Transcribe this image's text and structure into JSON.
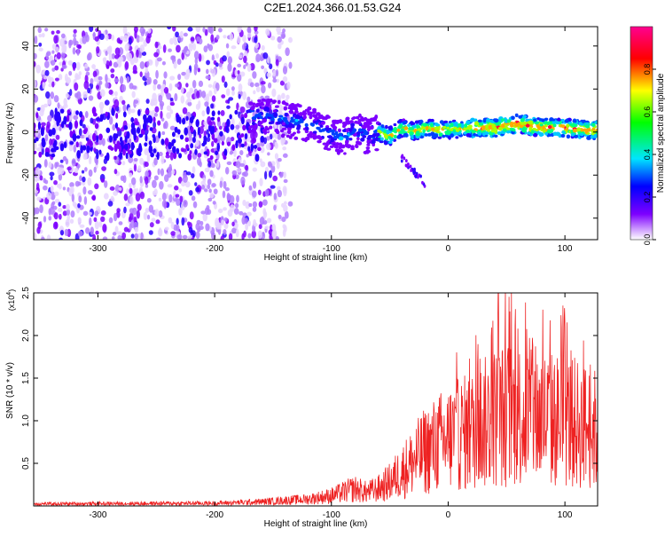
{
  "title": "C2E1.2024.366.01.53.G24",
  "colorbar": {
    "label": "Normalized spectral amplitude",
    "ticks": [
      "0.0",
      "0.2",
      "0.4",
      "0.6",
      "0.8"
    ],
    "tick_values": [
      0.0,
      0.2,
      0.4,
      0.6,
      0.8
    ],
    "range": [
      0,
      1
    ],
    "colors": [
      "#ffffff",
      "#7d00ff",
      "#0000ff",
      "#00e5ff",
      "#00ff00",
      "#ffff00",
      "#ff0000",
      "#ff0090"
    ]
  },
  "chart_data": [
    {
      "type": "heatmap",
      "xlabel": "Height of straight line (km)",
      "ylabel": "Frequency (Hz)",
      "xlim": [
        -355,
        128
      ],
      "ylim": [
        -50,
        49
      ],
      "xticks": [
        -300,
        -200,
        -100,
        0,
        100
      ],
      "xtick_labels": [
        "-300",
        "-200",
        "-100",
        "0",
        "100"
      ],
      "yticks": [
        -40,
        -20,
        0,
        20,
        40
      ],
      "ytick_labels": [
        "-40",
        "-20",
        "0",
        "20",
        "40"
      ],
      "description_of_ridge": {
        "x": [
          -160,
          -140,
          -120,
          -100,
          -90,
          -80,
          -70,
          -60,
          -50,
          -40,
          -30,
          -20,
          -10,
          0,
          20,
          40,
          60,
          80,
          100,
          120
        ],
        "y": [
          8,
          6,
          4,
          -1,
          -3,
          1,
          -2,
          0,
          -2,
          2,
          0,
          2,
          1,
          1,
          2,
          2,
          4,
          2,
          2,
          1
        ]
      }
    },
    {
      "type": "line",
      "xlabel": "Height of straight line (km)",
      "ylabel": "SNR (10 * v/v)",
      "scale_label": "(x10",
      "scale_exp": "4",
      "scale_close": ")",
      "xlim": [
        -355,
        128
      ],
      "ylim": [
        0,
        2.5
      ],
      "xticks": [
        -300,
        -200,
        -100,
        0,
        100
      ],
      "xtick_labels": [
        "-300",
        "-200",
        "-100",
        "0",
        "100"
      ],
      "yticks": [
        0.5,
        1.0,
        1.5,
        2.0,
        2.5
      ],
      "ytick_labels": [
        "0.5",
        "1.0",
        "1.5",
        "2.0",
        "2.5"
      ],
      "color": "#ee2222",
      "envelope": {
        "x": [
          -355,
          -200,
          -160,
          -120,
          -100,
          -90,
          -80,
          -70,
          -60,
          -50,
          -40,
          -30,
          -20,
          -10,
          0,
          10,
          20,
          30,
          40,
          50,
          60,
          70,
          80,
          90,
          100,
          110,
          120,
          128
        ],
        "y": [
          0.03,
          0.04,
          0.06,
          0.1,
          0.15,
          0.2,
          0.25,
          0.2,
          0.25,
          0.35,
          0.5,
          0.65,
          0.8,
          0.9,
          1.0,
          1.05,
          1.1,
          1.2,
          1.3,
          1.35,
          1.35,
          1.3,
          1.3,
          1.25,
          1.25,
          1.2,
          1.15,
          1.1
        ]
      },
      "peak": {
        "x": 43,
        "y": 2.5
      }
    }
  ]
}
